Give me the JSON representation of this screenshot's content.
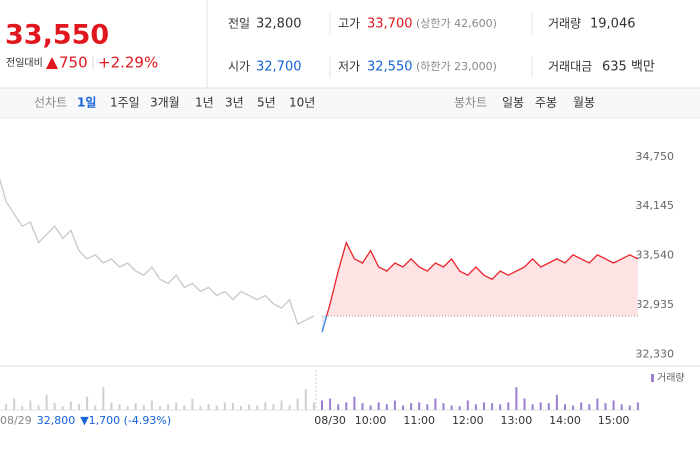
{
  "summary": {
    "price": "33,550",
    "change_label": "전일대비",
    "change": "750",
    "change_rate": "+2.29%",
    "stats": [
      {
        "label": "전일",
        "value": "32,800"
      },
      {
        "label": "고가",
        "value": "33,700",
        "note": "(상한가 42,600)"
      },
      {
        "label": "거래량",
        "value": "19,046"
      },
      {
        "label": "시가",
        "value": "32,700"
      },
      {
        "label": "저가",
        "value": "32,550",
        "note": "(하한가 23,000)"
      },
      {
        "label": "거래대금",
        "value": "635 백만"
      }
    ]
  },
  "tabs": {
    "line_label": "선차트",
    "line": [
      "1일",
      "1주일",
      "3개월",
      "1년",
      "3년",
      "5년",
      "10년"
    ],
    "candle_label": "봉차트",
    "candle": [
      "일봉",
      "주봉",
      "월봉"
    ]
  },
  "chart_data": {
    "type": "line",
    "categories": [
      null,
      "08/29",
      null,
      null,
      null,
      null,
      null,
      null,
      null,
      null,
      null,
      null,
      null,
      null,
      null,
      null,
      null,
      null,
      null,
      null,
      null,
      null,
      null,
      null,
      null,
      null,
      null,
      null,
      null,
      null,
      null,
      null,
      null,
      null,
      null,
      null,
      null,
      null,
      null,
      null,
      null,
      "08/30",
      null,
      null,
      null,
      null,
      "10:00",
      null,
      null,
      null,
      null,
      null,
      "11:00",
      null,
      null,
      null,
      null,
      null,
      "12:00",
      null,
      null,
      null,
      null,
      null,
      "13:00",
      null,
      null,
      null,
      null,
      null,
      "14:00",
      null,
      null,
      null,
      null,
      null,
      "15:00",
      null,
      null,
      null
    ],
    "series": [
      {
        "color": "#c8c8c8",
        "values": [
          34550,
          34200,
          34050,
          33900,
          33950,
          33700,
          33800,
          33900,
          33750,
          33850,
          33600,
          33500,
          33550,
          33450,
          33500,
          33400,
          33450,
          33350,
          33300,
          33400,
          33250,
          33200,
          33300,
          33150,
          33200,
          33100,
          33150,
          33050,
          33100,
          33000,
          33100,
          33050,
          33000,
          33050,
          32950,
          32900,
          33000,
          32700,
          32750,
          32800,
          null,
          null,
          null,
          null,
          null,
          null,
          null,
          null,
          null,
          null,
          null,
          null,
          null,
          null,
          null,
          null,
          null,
          null,
          null,
          null,
          null,
          null,
          null,
          null,
          null,
          null,
          null,
          null,
          null,
          null,
          null,
          null,
          null,
          null,
          null,
          null,
          null,
          null,
          null,
          null
        ]
      },
      {
        "color": "#e8242a",
        "below_color": "#3d7ee0",
        "fill": "#fde3e4",
        "values": [
          null,
          null,
          null,
          null,
          null,
          null,
          null,
          null,
          null,
          null,
          null,
          null,
          null,
          null,
          null,
          null,
          null,
          null,
          null,
          null,
          null,
          null,
          null,
          null,
          null,
          null,
          null,
          null,
          null,
          null,
          null,
          null,
          null,
          null,
          null,
          null,
          null,
          null,
          null,
          null,
          32600,
          32950,
          33350,
          33700,
          33500,
          33450,
          33600,
          33400,
          33350,
          33450,
          33400,
          33500,
          33400,
          33350,
          33450,
          33400,
          33500,
          33350,
          33300,
          33400,
          33300,
          33250,
          33350,
          33300,
          33350,
          33400,
          33500,
          33400,
          33450,
          33500,
          33450,
          33550,
          33500,
          33450,
          33550,
          33500,
          33450,
          33500,
          33550,
          33500
        ]
      }
    ],
    "baseline": 32800,
    "ylim": [
      32200,
      35140
    ],
    "yticks": [
      {
        "value": 32330,
        "label": "32,330"
      },
      {
        "value": 32935,
        "label": "32,935"
      },
      {
        "value": 33540,
        "label": "33,540"
      },
      {
        "value": 34145,
        "label": "34,145"
      },
      {
        "value": 34750,
        "label": "34,750"
      }
    ],
    "volume": {
      "name": "거래량",
      "color": "#9b7fd1",
      "prev_color": "#cfcfcf",
      "ylim": [
        0,
        100
      ],
      "values": [
        20,
        15,
        30,
        10,
        25,
        12,
        40,
        18,
        10,
        22,
        15,
        35,
        12,
        60,
        20,
        15,
        10,
        18,
        12,
        25,
        10,
        15,
        20,
        12,
        30,
        10,
        15,
        12,
        20,
        18,
        10,
        14,
        12,
        20,
        15,
        25,
        12,
        30,
        55,
        20,
        25,
        30,
        15,
        20,
        35,
        18,
        12,
        20,
        15,
        25,
        12,
        18,
        20,
        15,
        30,
        18,
        12,
        10,
        25,
        15,
        20,
        18,
        15,
        20,
        60,
        30,
        15,
        20,
        18,
        40,
        15,
        12,
        20,
        15,
        30,
        18,
        25,
        15,
        12,
        20
      ]
    },
    "day_summary": {
      "close": "32,800",
      "change": "▼1,700 (-4.93%)"
    }
  }
}
